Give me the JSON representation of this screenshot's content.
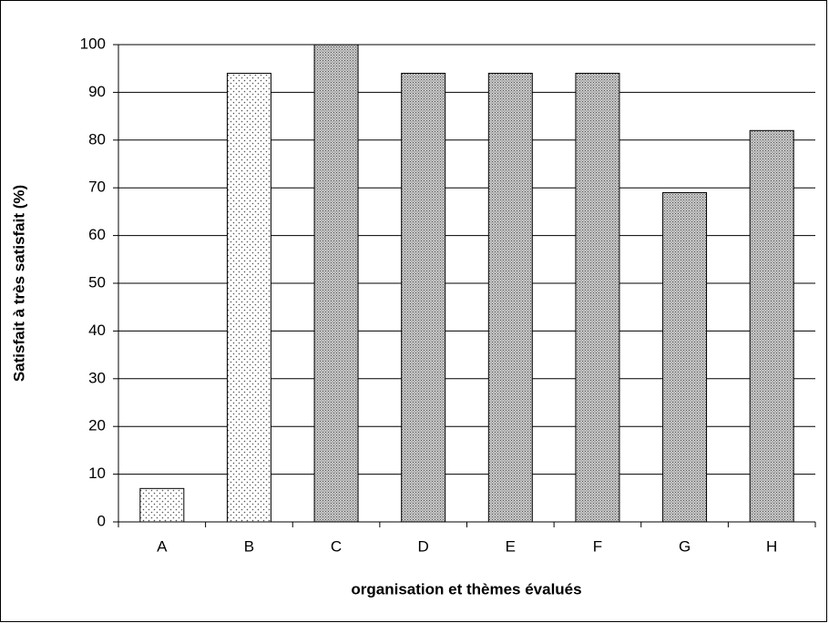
{
  "chart_data": {
    "type": "bar",
    "categories": [
      "A",
      "B",
      "C",
      "D",
      "E",
      "F",
      "G",
      "H"
    ],
    "values": [
      7,
      94,
      100,
      94,
      94,
      94,
      69,
      82
    ],
    "colors": [
      "#ffffff",
      "#ffffff",
      "#a0a0a0",
      "#a0a0a0",
      "#a0a0a0",
      "#a0a0a0",
      "#a0a0a0",
      "#a0a0a0"
    ],
    "patterns": [
      "dots",
      "dots",
      "crosshatch",
      "crosshatch",
      "crosshatch",
      "crosshatch",
      "crosshatch",
      "crosshatch"
    ],
    "xlabel": "organisation et thèmes évalués",
    "ylabel": "Satisfait à très satisfait (%)",
    "ylim": [
      0,
      100
    ],
    "yticks": [
      0,
      10,
      20,
      30,
      40,
      50,
      60,
      70,
      80,
      90,
      100
    ],
    "grid": true
  }
}
